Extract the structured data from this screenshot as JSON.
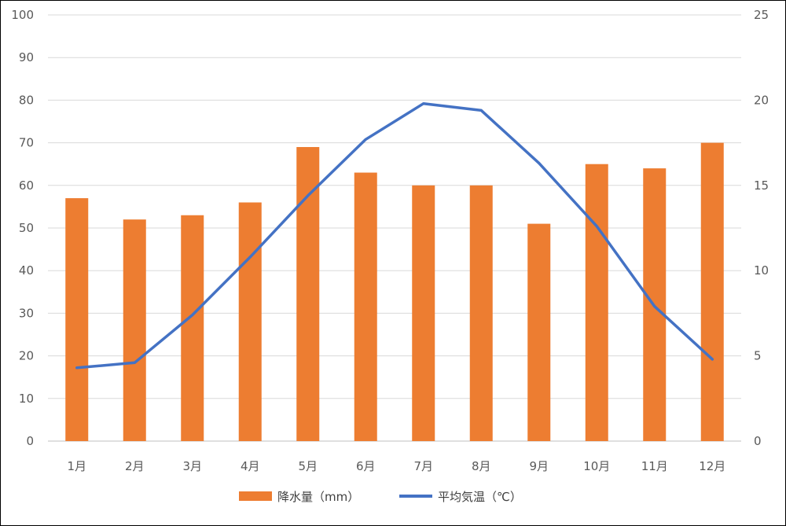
{
  "chart_data": {
    "type": "bar+line",
    "categories": [
      "1月",
      "2月",
      "3月",
      "4月",
      "5月",
      "6月",
      "7月",
      "8月",
      "9月",
      "10月",
      "11月",
      "12月"
    ],
    "series": [
      {
        "name": "降水量（mm）",
        "type": "bar",
        "axis": "left",
        "color": "#ED7D31",
        "values": [
          57,
          52,
          53,
          56,
          69,
          63,
          60,
          60,
          51,
          65,
          64,
          70
        ]
      },
      {
        "name": "平均気温（℃）",
        "type": "line",
        "axis": "right",
        "color": "#4472C4",
        "values": [
          4.3,
          4.6,
          7.4,
          10.8,
          14.4,
          17.7,
          19.8,
          19.4,
          16.3,
          12.6,
          7.9,
          4.8
        ]
      }
    ],
    "y_left": {
      "min": 0,
      "max": 100,
      "step": 10,
      "ticks": [
        "0",
        "10",
        "20",
        "30",
        "40",
        "50",
        "60",
        "70",
        "80",
        "90",
        "100"
      ]
    },
    "y_right": {
      "min": 0,
      "max": 25,
      "step": 5,
      "ticks": [
        "0",
        "5",
        "10",
        "15",
        "20",
        "25"
      ]
    },
    "grid": true,
    "legend": "bottom",
    "title": "",
    "xlabel": "",
    "ylabel": ""
  }
}
